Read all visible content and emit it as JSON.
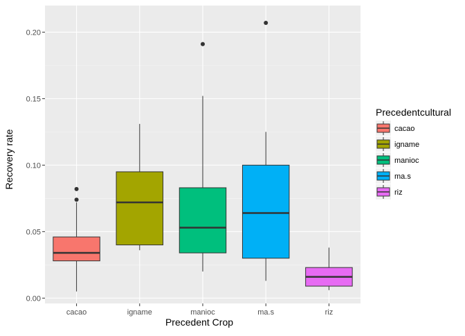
{
  "chart_data": {
    "type": "boxplot",
    "xlabel": "Precedent Crop",
    "ylabel": "Recovery rate",
    "ylim": [
      -0.004,
      0.22
    ],
    "yticks": [
      0.0,
      0.05,
      0.1,
      0.15,
      0.2
    ],
    "ytick_labels": [
      "0.00",
      "0.05",
      "0.10",
      "0.15",
      "0.20"
    ],
    "categories": [
      "cacao",
      "igname",
      "manioc",
      "ma.s",
      "riz"
    ],
    "grid": true,
    "legend": {
      "title": "Precedentcultural",
      "placement": "right",
      "entries": [
        "cacao",
        "igname",
        "manioc",
        "ma.s",
        "riz"
      ]
    },
    "colors": [
      "#F8766D",
      "#A3A500",
      "#00BF7D",
      "#00B0F6",
      "#E76BF3"
    ],
    "panel_background": "#EBEBEB",
    "boxes": [
      {
        "name": "cacao",
        "whisker_low": 0.005,
        "q1": 0.028,
        "median": 0.034,
        "q3": 0.046,
        "whisker_high": 0.072,
        "outliers": [
          0.074,
          0.082
        ]
      },
      {
        "name": "igname",
        "whisker_low": 0.036,
        "q1": 0.04,
        "median": 0.072,
        "q3": 0.095,
        "whisker_high": 0.131,
        "outliers": []
      },
      {
        "name": "manioc",
        "whisker_low": 0.02,
        "q1": 0.034,
        "median": 0.053,
        "q3": 0.083,
        "whisker_high": 0.152,
        "outliers": [
          0.191
        ]
      },
      {
        "name": "ma.s",
        "whisker_low": 0.013,
        "q1": 0.03,
        "median": 0.064,
        "q3": 0.1,
        "whisker_high": 0.125,
        "outliers": [
          0.207
        ]
      },
      {
        "name": "riz",
        "whisker_low": 0.006,
        "q1": 0.009,
        "median": 0.016,
        "q3": 0.023,
        "whisker_high": 0.038,
        "outliers": []
      }
    ]
  }
}
